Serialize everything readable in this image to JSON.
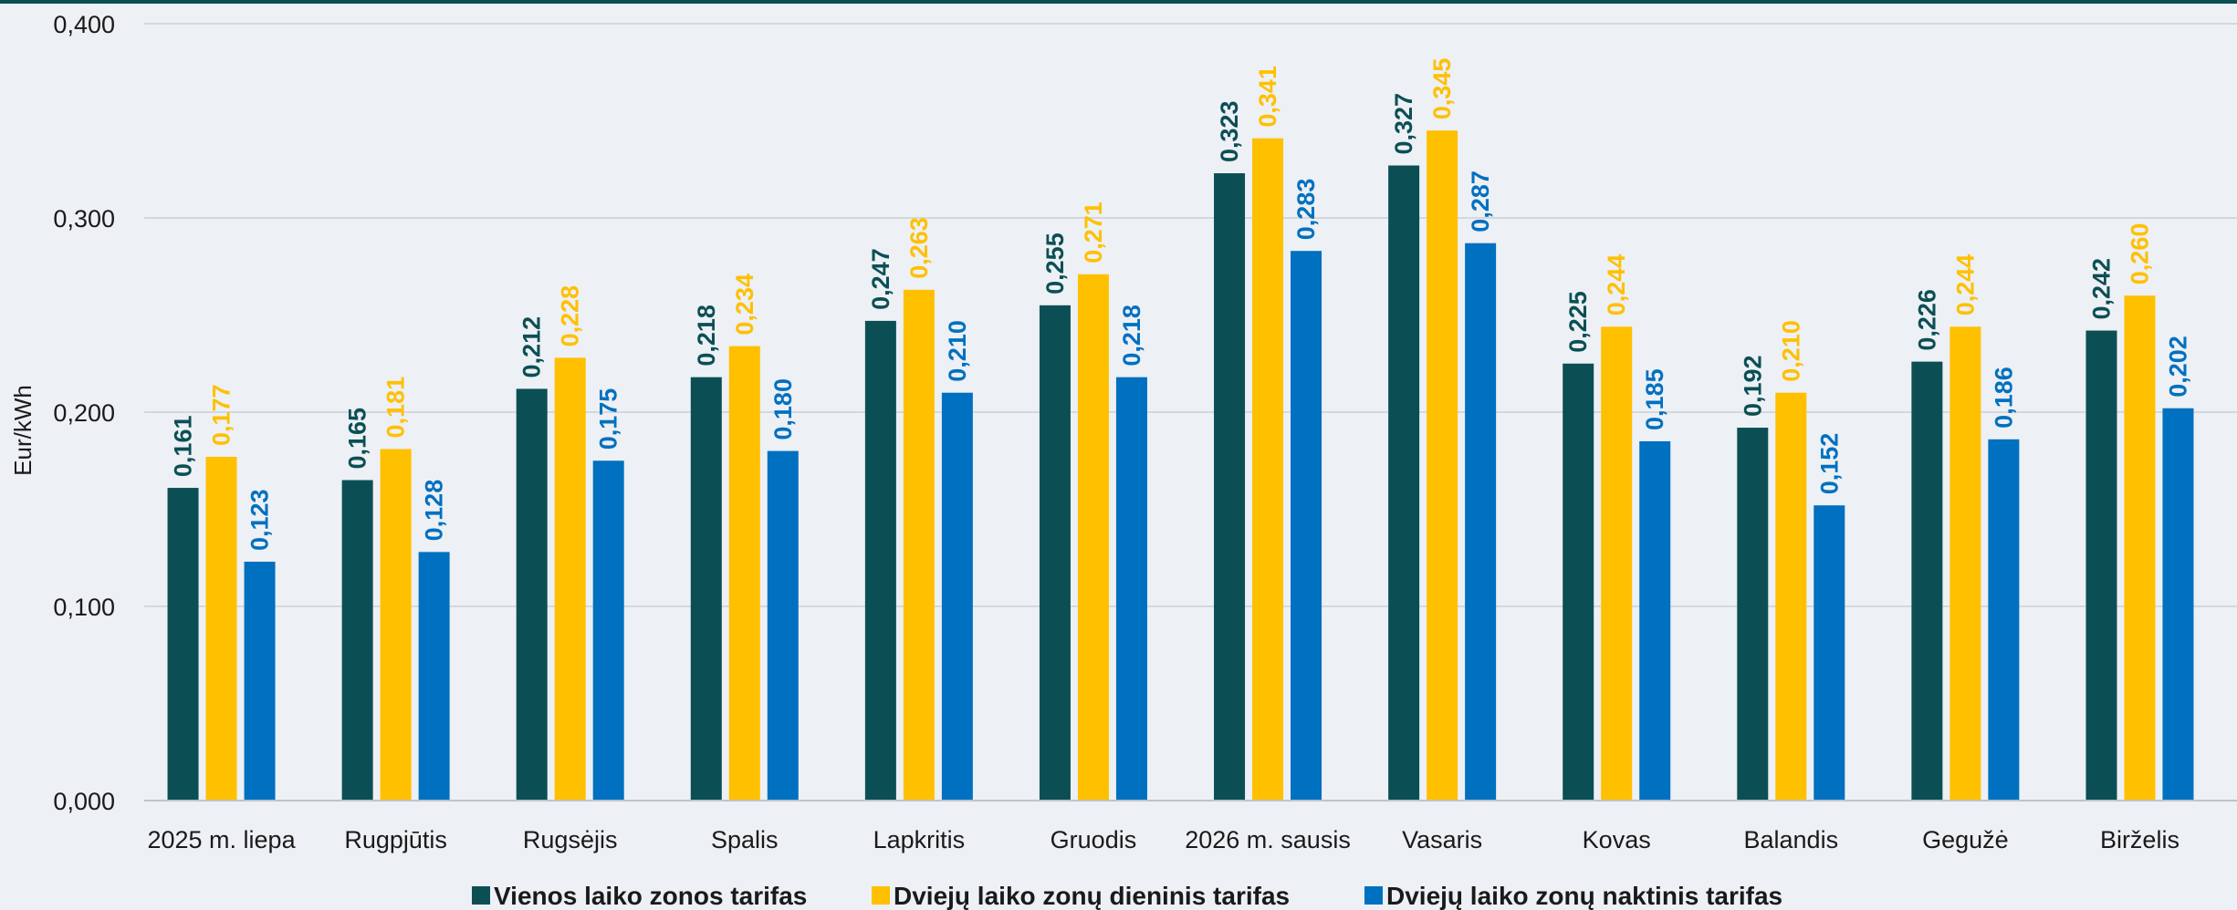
{
  "chart_data": {
    "type": "bar",
    "title": "",
    "xlabel": "",
    "ylabel": "Eur/kWh",
    "ylim": [
      0,
      0.4
    ],
    "yticks": [
      "0,000",
      "0,100",
      "0,200",
      "0,300",
      "0,400"
    ],
    "grid": true,
    "legend_position": "bottom",
    "categories": [
      "2025 m. liepa",
      "Rugpjūtis",
      "Rugsėjis",
      "Spalis",
      "Lapkritis",
      "Gruodis",
      "2026 m. sausis",
      "Vasaris",
      "Kovas",
      "Balandis",
      "Gegužė",
      "Birželis"
    ],
    "series": [
      {
        "name": "Vienos laiko zonos tarifas",
        "color": "#0b4f55",
        "values": [
          0.161,
          0.165,
          0.212,
          0.218,
          0.247,
          0.255,
          0.323,
          0.327,
          0.225,
          0.192,
          0.226,
          0.242
        ],
        "labels": [
          "0,161",
          "0,165",
          "0,212",
          "0,218",
          "0,247",
          "0,255",
          "0,323",
          "0,327",
          "0,225",
          "0,192",
          "0,226",
          "0,242"
        ]
      },
      {
        "name": "Dviejų laiko zonų dieninis tarifas",
        "color": "#ffc000",
        "values": [
          0.177,
          0.181,
          0.228,
          0.234,
          0.263,
          0.271,
          0.341,
          0.345,
          0.244,
          0.21,
          0.244,
          0.26
        ],
        "labels": [
          "0,177",
          "0,181",
          "0,228",
          "0,234",
          "0,263",
          "0,271",
          "0,341",
          "0,345",
          "0,244",
          "0,210",
          "0,244",
          "0,260"
        ]
      },
      {
        "name": "Dviejų laiko zonų naktinis tarifas",
        "color": "#0070c0",
        "values": [
          0.123,
          0.128,
          0.175,
          0.18,
          0.21,
          0.218,
          0.283,
          0.287,
          0.185,
          0.152,
          0.186,
          0.202
        ],
        "labels": [
          "0,123",
          "0,128",
          "0,175",
          "0,180",
          "0,210",
          "0,218",
          "0,283",
          "0,287",
          "0,185",
          "0,152",
          "0,186",
          "0,202"
        ]
      }
    ]
  },
  "colors": {
    "background": "#edf0f4",
    "top_border": "#0b4f55",
    "gridline": "#d4d8dc"
  }
}
